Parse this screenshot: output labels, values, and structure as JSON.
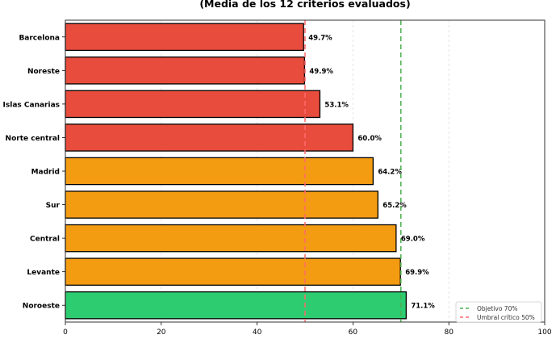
{
  "chart_data": {
    "type": "bar",
    "orientation": "horizontal",
    "title": "(Media de los 12 criterios evaluados)",
    "categories": [
      "Barcelona",
      "Noreste",
      "Islas Canarias",
      "Norte central",
      "Madrid",
      "Sur",
      "Central",
      "Levante",
      "Noroeste"
    ],
    "values": [
      49.7,
      49.9,
      53.1,
      60.0,
      64.2,
      65.2,
      69.0,
      69.9,
      71.1
    ],
    "value_labels": [
      "49.7%",
      "49.9%",
      "53.1%",
      "60.0%",
      "64.2%",
      "65.2%",
      "69.0%",
      "69.9%",
      "71.1%"
    ],
    "bar_colors": [
      "#e74c3c",
      "#e74c3c",
      "#e74c3c",
      "#e74c3c",
      "#f39c12",
      "#f39c12",
      "#f39c12",
      "#f39c12",
      "#2ecc71"
    ],
    "xlim": [
      0,
      100
    ],
    "xticks": [
      0,
      20,
      40,
      60,
      80,
      100
    ],
    "xtick_labels": [
      "0",
      "20",
      "40",
      "60",
      "80",
      "100"
    ],
    "grid": "vertical dashed",
    "reference_lines": [
      {
        "value": 70,
        "label": "Objetivo 70%",
        "color": "#4caf50"
      },
      {
        "value": 50,
        "label": "Umbral crítico 50%",
        "color": "#ff6b6b"
      }
    ],
    "legend_placement": "bottom-right"
  }
}
